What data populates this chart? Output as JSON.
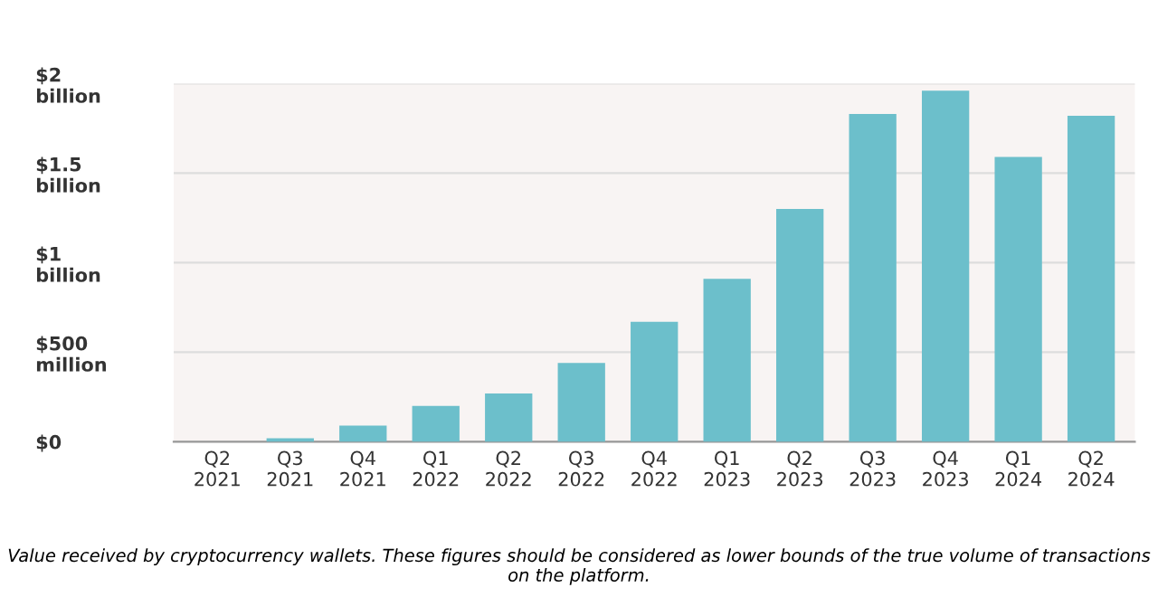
{
  "chart_data": {
    "type": "bar",
    "categories": [
      "Q2\n2021",
      "Q3\n2021",
      "Q4\n2021",
      "Q1\n2022",
      "Q2\n2022",
      "Q3\n2022",
      "Q4\n2022",
      "Q1\n2023",
      "Q2\n2023",
      "Q3\n2023",
      "Q4\n2023",
      "Q1\n2024",
      "Q2\n2024"
    ],
    "values": [
      0,
      20000000,
      90000000,
      200000000,
      270000000,
      440000000,
      670000000,
      910000000,
      1300000000,
      1830000000,
      1960000000,
      1590000000,
      1820000000
    ],
    "color": "#6cbfcb",
    "ylim": [
      0,
      2000000000
    ],
    "yticks": [
      {
        "value": 0,
        "label": "$0"
      },
      {
        "value": 500000000,
        "label": "$500\nmillion"
      },
      {
        "value": 1000000000,
        "label": "$1\nbillion"
      },
      {
        "value": 1500000000,
        "label": "$1.5\nbillion"
      },
      {
        "value": 2000000000,
        "label": "$2\nbillion"
      }
    ],
    "grid": "y",
    "annotations": [
      "Value received by cryptocurrency wallets. These figures should be considered as lower bounds of the true volume of transactions on the platform."
    ]
  }
}
